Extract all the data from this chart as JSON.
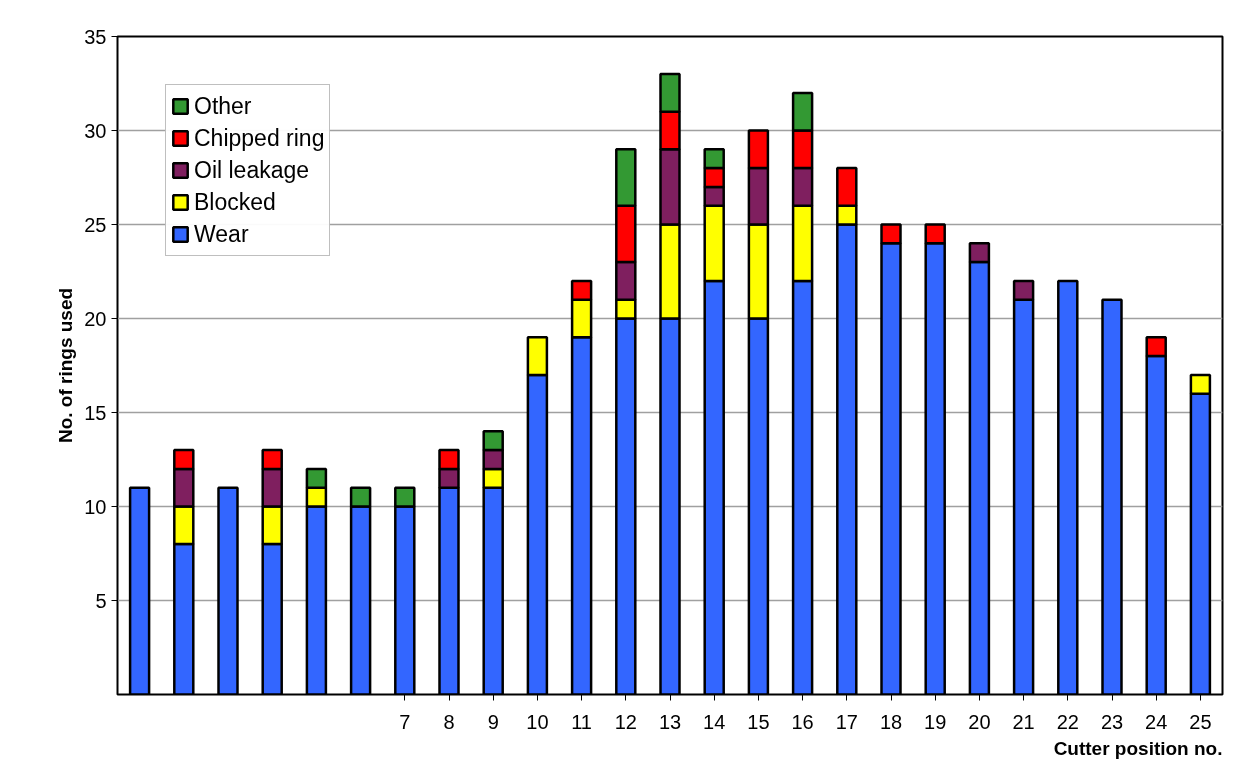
{
  "chart_data": {
    "type": "bar",
    "stacked": true,
    "xlabel": "Cutter position no.",
    "ylabel": "No. of rings used",
    "categories": [
      null,
      null,
      null,
      null,
      null,
      null,
      "7",
      "8",
      "9",
      "10",
      "11",
      "12",
      "13",
      "14",
      "15",
      "16",
      "17",
      "18",
      "19",
      "20",
      "21",
      "22",
      "23",
      "24",
      "25"
    ],
    "series": [
      {
        "name": "Wear",
        "color": "#3366ff",
        "values": [
          11,
          8,
          11,
          8,
          10,
          10,
          10,
          11,
          11,
          17,
          19,
          20,
          20,
          22,
          20,
          22,
          25,
          24,
          24,
          23,
          21,
          22,
          21,
          18,
          16
        ]
      },
      {
        "name": "Blocked",
        "color": "#ffff00",
        "values": [
          0,
          2,
          0,
          2,
          1,
          0,
          0,
          0,
          1,
          2,
          2,
          1,
          5,
          4,
          5,
          4,
          1,
          0,
          0,
          0,
          0,
          0,
          0,
          0,
          1
        ]
      },
      {
        "name": "Oil leakage",
        "color": "#7f1f5f",
        "values": [
          0,
          2,
          0,
          2,
          0,
          0,
          0,
          1,
          1,
          0,
          0,
          2,
          4,
          1,
          3,
          2,
          0,
          0,
          0,
          1,
          1,
          0,
          0,
          0,
          0
        ]
      },
      {
        "name": "Chipped ring",
        "color": "#ff0000",
        "values": [
          0,
          1,
          0,
          1,
          0,
          0,
          0,
          1,
          0,
          0,
          1,
          3,
          2,
          1,
          2,
          2,
          2,
          1,
          1,
          0,
          0,
          0,
          0,
          1,
          0
        ]
      },
      {
        "name": "Other",
        "color": "#339933",
        "values": [
          0,
          0,
          0,
          0,
          1,
          1,
          1,
          0,
          1,
          0,
          0,
          3,
          2,
          1,
          0,
          2,
          0,
          0,
          0,
          0,
          0,
          0,
          0,
          0,
          0
        ]
      }
    ],
    "ylim": [
      0,
      35
    ],
    "yticks": [
      5,
      10,
      15,
      20,
      25,
      30,
      35
    ],
    "grid": "y",
    "legend": "top left"
  }
}
